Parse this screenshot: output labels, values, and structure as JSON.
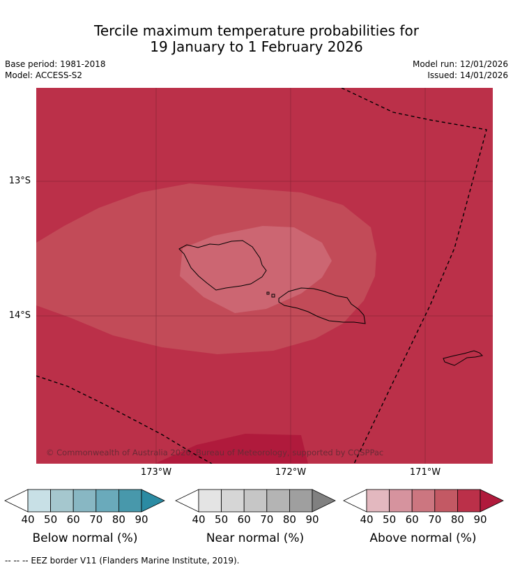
{
  "title": {
    "line1": "Tercile maximum temperature probabilities for",
    "line2": "19 January to 1 February 2026"
  },
  "meta": {
    "base_period": "Base period: 1981-2018",
    "model": "Model: ACCESS-S2",
    "model_run": "Model run: 12/01/2026",
    "issued": "Issued: 14/01/2026"
  },
  "map": {
    "lat_labels": [
      "13°S",
      "14°S"
    ],
    "lon_labels": [
      "173°W",
      "172°W",
      "171°W"
    ],
    "copyright": "© Commonwealth of Australia 2026, Bureau of Meteorology, supported by COSPPac"
  },
  "colorbars": {
    "ticks": [
      "40",
      "50",
      "60",
      "70",
      "80",
      "90"
    ],
    "below": {
      "label": "Below normal (%)",
      "colors": [
        "#c8e0e6",
        "#a5c7ce",
        "#88b7c3",
        "#6aaabb",
        "#4898ab",
        "#2b8ba3"
      ]
    },
    "near": {
      "label": "Near normal (%)",
      "colors": [
        "#e4e4e4",
        "#d6d6d6",
        "#c6c6c6",
        "#b4b4b4",
        "#9f9f9f",
        "#808080"
      ]
    },
    "above": {
      "label": "Above normal (%)",
      "colors": [
        "#e3b8bf",
        "#d6939e",
        "#cc7680",
        "#c35964",
        "#bb3049",
        "#b01a3c"
      ]
    }
  },
  "footer": "--  --  -- EEZ border V11 (Flanders Marine Institute, 2019)."
}
